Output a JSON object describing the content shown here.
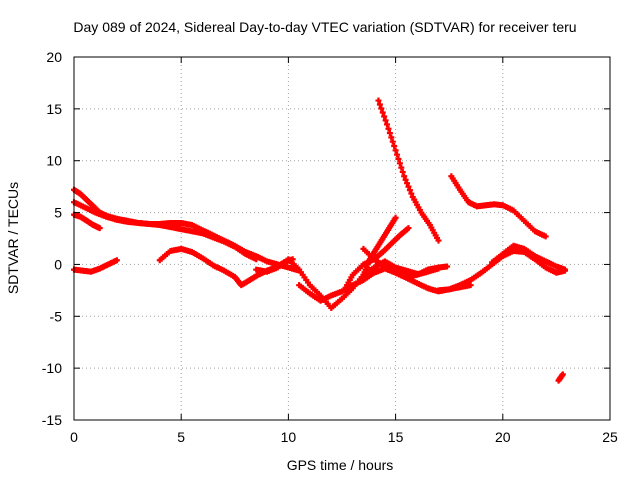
{
  "chart_data": {
    "type": "scatter",
    "title": "Day 089 of 2024, Sidereal Day-to-day VTEC variation (SDTVAR) for receiver teru",
    "xlabel": "GPS time / hours",
    "ylabel": "SDTVAR / TECUs",
    "xlim": [
      0,
      25
    ],
    "ylim": [
      -15,
      20
    ],
    "xticks": [
      0,
      5,
      10,
      15,
      20,
      25
    ],
    "yticks": [
      -15,
      -10,
      -5,
      0,
      5,
      10,
      15,
      20
    ],
    "xtick_labels": [
      "0",
      "5",
      "10",
      "15",
      "20",
      "25"
    ],
    "ytick_labels": [
      "-15",
      "-10",
      "-5",
      "0",
      "5",
      "10",
      "15",
      "20"
    ],
    "grid": true,
    "marker_color": "#ff0000",
    "marker": "plus",
    "series": [
      {
        "name": "s1",
        "x": [
          0.0,
          0.5,
          1.0,
          1.5,
          2.0,
          2.5,
          3.0,
          3.5,
          4.0,
          4.5,
          5.0,
          5.5,
          6.0,
          6.5,
          7.0,
          7.5,
          8.0,
          8.5
        ],
        "y": [
          6.0,
          5.5,
          5.0,
          4.6,
          4.3,
          4.1,
          4.0,
          3.9,
          3.8,
          3.6,
          3.4,
          3.2,
          3.0,
          2.6,
          2.2,
          1.7,
          1.0,
          0.5
        ]
      },
      {
        "name": "s2",
        "x": [
          0.0,
          0.3,
          0.6,
          0.9,
          1.2,
          1.5,
          2.0,
          2.5,
          3.0,
          3.5,
          4.0,
          4.5,
          5.0,
          5.5,
          6.0,
          6.5,
          7.0,
          7.5,
          8.0,
          8.5,
          9.0,
          9.5,
          10.0,
          10.5
        ],
        "y": [
          7.2,
          6.8,
          6.2,
          5.6,
          5.0,
          4.7,
          4.4,
          4.2,
          4.0,
          3.9,
          3.9,
          4.0,
          4.0,
          3.8,
          3.3,
          2.8,
          2.3,
          1.8,
          1.2,
          0.8,
          0.3,
          0.0,
          -0.3,
          -0.6
        ]
      },
      {
        "name": "s3",
        "x": [
          0.0,
          0.3,
          0.6,
          0.9,
          1.2
        ],
        "y": [
          4.8,
          4.6,
          4.2,
          3.8,
          3.5
        ]
      },
      {
        "name": "s4",
        "x": [
          0.0,
          0.4,
          0.8,
          1.2,
          1.6,
          2.0
        ],
        "y": [
          -0.5,
          -0.6,
          -0.7,
          -0.4,
          0.0,
          0.4
        ]
      },
      {
        "name": "s5",
        "x": [
          4.0,
          4.5,
          5.0,
          5.5,
          6.0,
          6.5,
          7.0,
          7.5,
          7.8,
          8.2,
          8.6,
          9.0,
          9.4,
          9.8,
          10.2
        ],
        "y": [
          0.4,
          1.3,
          1.5,
          1.2,
          0.6,
          -0.1,
          -0.6,
          -1.2,
          -2.0,
          -1.5,
          -1.0,
          -0.6,
          -0.3,
          0.2,
          0.5
        ]
      },
      {
        "name": "s6",
        "x": [
          8.5,
          9.0,
          9.5,
          10.0,
          10.5,
          11.0,
          11.5,
          12.0,
          12.5,
          13.0,
          13.5,
          14.0,
          14.5,
          15.0,
          15.5,
          16.0
        ],
        "y": [
          -0.5,
          -0.7,
          -0.3,
          0.5,
          -0.5,
          -2.0,
          -3.0,
          -4.2,
          -3.3,
          -2.3,
          -1.0,
          -0.3,
          0.3,
          -0.3,
          -0.6,
          -0.9
        ]
      },
      {
        "name": "s7",
        "x": [
          10.5,
          11.0,
          11.5,
          12.0,
          12.5,
          13.0,
          13.5,
          14.0,
          14.5,
          15.0,
          15.5,
          16.0,
          16.5,
          17.0,
          17.5,
          18.0,
          18.5
        ],
        "y": [
          -2.0,
          -2.8,
          -3.5,
          -3.0,
          -2.6,
          -2.0,
          -1.5,
          -0.8,
          -0.4,
          -0.8,
          -1.3,
          -1.8,
          -2.3,
          -2.6,
          -2.4,
          -2.2,
          -2.0
        ]
      },
      {
        "name": "s8",
        "x": [
          12.6,
          13.0,
          13.5,
          14.0,
          14.5,
          15.0,
          15.5,
          16.0,
          16.5,
          17.0
        ],
        "y": [
          -2.5,
          -1.0,
          0.0,
          0.5,
          -0.2,
          -0.5,
          -0.8,
          -1.0,
          -0.7,
          -0.4
        ]
      },
      {
        "name": "s9",
        "x": [
          13.5,
          13.8,
          14.1,
          14.4,
          14.7,
          15.0
        ],
        "y": [
          -1.0,
          0.5,
          1.5,
          2.5,
          3.5,
          4.5
        ]
      },
      {
        "name": "s10",
        "x": [
          14.0,
          14.4,
          14.8,
          15.2,
          15.6
        ],
        "y": [
          0.5,
          1.2,
          2.0,
          2.8,
          3.5
        ]
      },
      {
        "name": "s11",
        "x": [
          14.2,
          14.6,
          15.0,
          15.4,
          15.8,
          16.2,
          16.6,
          17.0
        ],
        "y": [
          15.8,
          13.5,
          11.0,
          8.5,
          6.5,
          5.0,
          3.8,
          2.3
        ]
      },
      {
        "name": "s12",
        "x": [
          13.5,
          14.0,
          14.5,
          15.0,
          15.5,
          16.0,
          16.5,
          17.0,
          17.4
        ],
        "y": [
          1.5,
          0.5,
          -0.3,
          -0.8,
          -1.2,
          -1.0,
          -0.5,
          -0.3,
          -0.2
        ]
      },
      {
        "name": "s13",
        "x": [
          17.0,
          17.5,
          18.0,
          18.5,
          19.0,
          19.5,
          20.0,
          20.5,
          21.0,
          21.5,
          22.0,
          22.5,
          22.9
        ],
        "y": [
          -2.5,
          -2.4,
          -2.0,
          -1.5,
          -0.8,
          0.0,
          0.8,
          1.3,
          1.2,
          0.5,
          -0.3,
          -0.8,
          -0.6
        ]
      },
      {
        "name": "s14",
        "x": [
          19.5,
          20.0,
          20.5,
          21.0,
          21.5,
          22.0,
          22.5,
          22.9
        ],
        "y": [
          0.2,
          1.0,
          1.8,
          1.5,
          0.8,
          0.3,
          -0.2,
          -0.5
        ]
      },
      {
        "name": "s15",
        "x": [
          17.6,
          18.0,
          18.4,
          18.8,
          19.2,
          19.6,
          20.0,
          20.5,
          21.0,
          21.5,
          22.0
        ],
        "y": [
          8.5,
          7.2,
          6.0,
          5.6,
          5.7,
          5.8,
          5.7,
          5.2,
          4.2,
          3.2,
          2.7
        ]
      },
      {
        "name": "s16",
        "x": [
          22.6,
          22.8
        ],
        "y": [
          -11.2,
          -10.6
        ]
      }
    ]
  }
}
